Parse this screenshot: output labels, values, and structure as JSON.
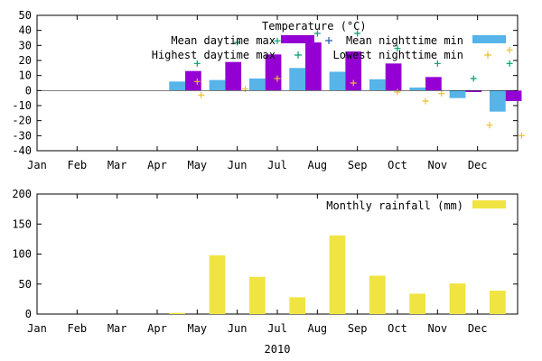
{
  "chart_data": [
    {
      "type": "bar",
      "title": "Temperature (°C)",
      "months": [
        "Jan",
        "Feb",
        "Mar",
        "Apr",
        "May",
        "Jun",
        "Jul",
        "Aug",
        "Sep",
        "Oct",
        "Nov",
        "Dec"
      ],
      "ylim": [
        -40,
        50
      ],
      "yticks": [
        -40,
        -30,
        -20,
        -10,
        0,
        10,
        20,
        30,
        40,
        50
      ],
      "grid": false,
      "legend_position": "top-right",
      "series": [
        {
          "name": "Mean nighttime min",
          "kind": "bar",
          "color": "#56b4e9",
          "x": [
            3.5,
            4.5,
            5.5,
            6.5,
            7.5,
            8.5,
            9.5,
            10.5,
            11.5
          ],
          "values": [
            6,
            7,
            8,
            15,
            12.5,
            7.5,
            2,
            -5,
            -14
          ]
        },
        {
          "name": "Mean daytime max",
          "kind": "bar",
          "color": "#9400d3",
          "x": [
            3.9,
            4.9,
            5.9,
            6.9,
            7.9,
            8.9,
            9.9,
            10.9,
            11.9
          ],
          "values": [
            13,
            19,
            24,
            32,
            26,
            18,
            9,
            -1,
            -7
          ]
        },
        {
          "name": "Highest daytime max",
          "kind": "point",
          "color": "#009e73",
          "x": [
            4.0,
            5.0,
            6.0,
            7.0,
            8.0,
            9.0,
            10.0,
            10.9,
            11.8
          ],
          "values": [
            18,
            32,
            33,
            38,
            38,
            28,
            18,
            8,
            18
          ]
        },
        {
          "name": "Lowest nighttime min",
          "kind": "point",
          "color": "#e6c229",
          "x": [
            4.0,
            4.1,
            5.2,
            6.0,
            7.9,
            9.0,
            9.7,
            10.1,
            11.3,
            11.8,
            12.1
          ],
          "values": [
            6,
            -3,
            1,
            8,
            5,
            -1,
            -7,
            -2,
            -23,
            27,
            -30
          ]
        }
      ]
    },
    {
      "type": "bar",
      "months": [
        "Jan",
        "Feb",
        "Mar",
        "Apr",
        "May",
        "Jun",
        "Jul",
        "Aug",
        "Sep",
        "Oct",
        "Nov",
        "Dec"
      ],
      "xlabel": "2010",
      "ylim": [
        0,
        200
      ],
      "yticks": [
        0,
        50,
        100,
        150,
        200
      ],
      "grid": false,
      "legend_position": "top-right",
      "series": [
        {
          "name": "Monthly rainfall (mm)",
          "kind": "bar",
          "color": "#f0e442",
          "x": [
            3.5,
            4.5,
            5.5,
            6.5,
            7.5,
            8.5,
            9.5,
            10.5,
            11.5
          ],
          "values": [
            2,
            98,
            62,
            28,
            131,
            64,
            34,
            51,
            39
          ]
        }
      ]
    }
  ]
}
